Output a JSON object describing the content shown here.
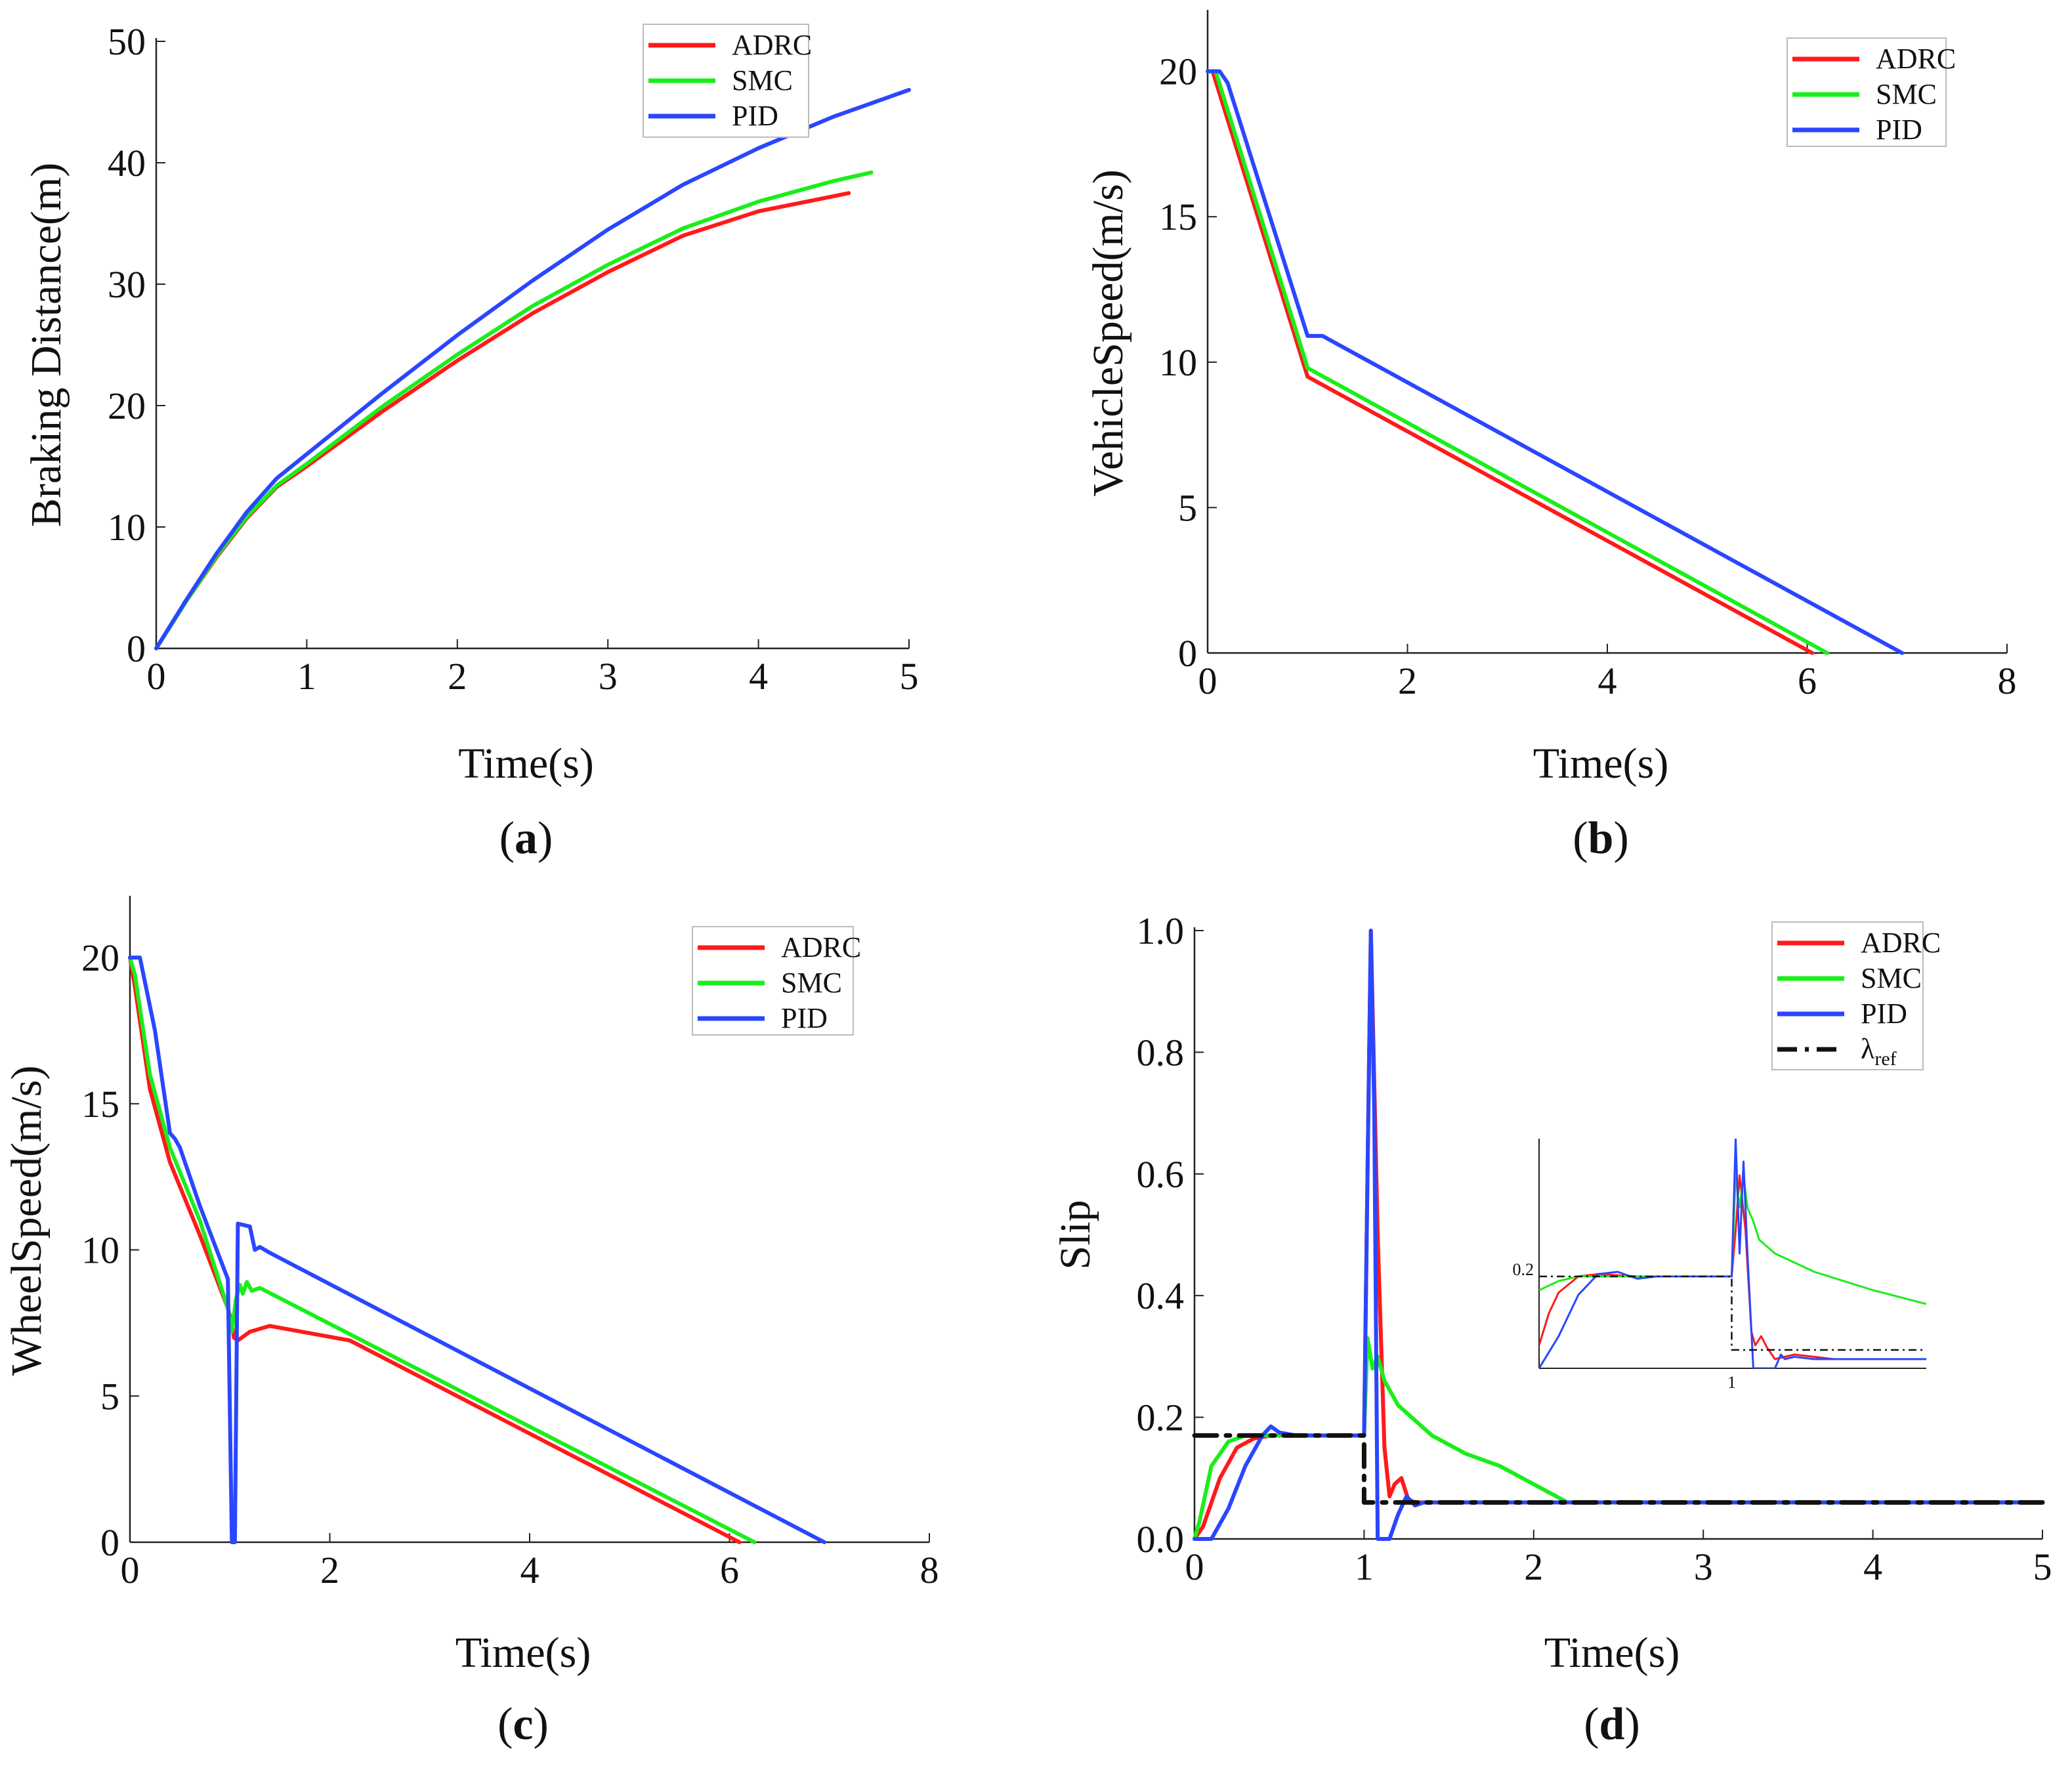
{
  "figure": {
    "labels": [
      "(a)",
      "(b)",
      "(c)",
      "(d)"
    ],
    "colors": {
      "ADRC": "#ff1a1a",
      "SMC": "#1aee1a",
      "PID": "#2a46ff",
      "ref": "#111111"
    }
  },
  "chart_data": [
    {
      "type": "line",
      "panel": "(a)",
      "xlabel": "Time(s)",
      "ylabel": "Braking Distance(m)",
      "xlim": [
        0,
        5
      ],
      "ylim": [
        0,
        50
      ],
      "xticks": [
        0,
        1,
        2,
        3,
        4,
        5
      ],
      "yticks": [
        0,
        10,
        20,
        30,
        40,
        50
      ],
      "legend": [
        "ADRC",
        "SMC",
        "PID"
      ],
      "legend_position": "top-right",
      "series": [
        {
          "name": "ADRC",
          "x": [
            0,
            0.2,
            0.4,
            0.6,
            0.8,
            1.0,
            1.5,
            2.0,
            2.5,
            3.0,
            3.5,
            4.0,
            4.6
          ],
          "y": [
            0,
            3.9,
            7.5,
            10.7,
            13.3,
            15.0,
            19.5,
            23.7,
            27.6,
            31.0,
            34.0,
            36.0,
            37.5
          ]
        },
        {
          "name": "SMC",
          "x": [
            0,
            0.2,
            0.4,
            0.6,
            0.8,
            1.0,
            1.5,
            2.0,
            2.5,
            3.0,
            3.5,
            4.0,
            4.5,
            4.75
          ],
          "y": [
            0,
            3.9,
            7.6,
            10.8,
            13.4,
            15.2,
            19.9,
            24.2,
            28.2,
            31.6,
            34.6,
            36.8,
            38.5,
            39.2
          ]
        },
        {
          "name": "PID",
          "x": [
            0,
            0.2,
            0.4,
            0.6,
            0.8,
            1.0,
            1.5,
            2.0,
            2.5,
            3.0,
            3.5,
            4.0,
            4.5,
            5.0
          ],
          "y": [
            0,
            4.0,
            7.8,
            11.2,
            14.0,
            16.0,
            21.0,
            25.8,
            30.3,
            34.5,
            38.2,
            41.2,
            43.8,
            46.0
          ]
        }
      ]
    },
    {
      "type": "line",
      "panel": "(b)",
      "xlabel": "Time(s)",
      "ylabel": "VehicleSpeed(m/s)",
      "xlim": [
        0,
        8
      ],
      "ylim": [
        0,
        22
      ],
      "xticks": [
        0,
        2,
        4,
        6,
        8
      ],
      "yticks": [
        0,
        5,
        10,
        15,
        20
      ],
      "legend": [
        "ADRC",
        "SMC",
        "PID"
      ],
      "legend_position": "top-right",
      "series": [
        {
          "name": "ADRC",
          "x": [
            0,
            0.05,
            1.0,
            6.05
          ],
          "y": [
            20,
            20,
            9.5,
            0
          ]
        },
        {
          "name": "SMC",
          "x": [
            0,
            0.08,
            1.0,
            6.2
          ],
          "y": [
            20,
            20,
            9.8,
            0
          ]
        },
        {
          "name": "PID",
          "x": [
            0,
            0.12,
            0.2,
            1.0,
            1.15,
            6.95
          ],
          "y": [
            20,
            20,
            19.6,
            10.9,
            10.9,
            0
          ]
        }
      ]
    },
    {
      "type": "line",
      "panel": "(c)",
      "xlabel": "Time(s)",
      "ylabel": "WheelSpeed(m/s)",
      "xlim": [
        0,
        8
      ],
      "ylim": [
        0,
        22
      ],
      "xticks": [
        0,
        2,
        4,
        6,
        8
      ],
      "yticks": [
        0,
        5,
        10,
        15,
        20
      ],
      "legend": [
        "ADRC",
        "SMC",
        "PID"
      ],
      "legend_position": "top-right",
      "series": [
        {
          "name": "ADRC",
          "x": [
            0,
            0.05,
            0.2,
            0.4,
            0.7,
            0.98,
            1.02,
            1.04,
            1.08,
            1.2,
            1.4,
            2.2,
            6.1
          ],
          "y": [
            20,
            19.0,
            15.5,
            13.0,
            10.5,
            8.0,
            7.5,
            7.0,
            6.9,
            7.2,
            7.4,
            6.9,
            0
          ]
        },
        {
          "name": "SMC",
          "x": [
            0,
            0.05,
            0.2,
            0.4,
            0.7,
            0.98,
            1.02,
            1.06,
            1.1,
            1.13,
            1.17,
            1.22,
            1.3,
            6.25
          ],
          "y": [
            20,
            19.4,
            16.0,
            13.5,
            11.0,
            8.0,
            7.2,
            8.3,
            8.8,
            8.5,
            8.9,
            8.6,
            8.7,
            0
          ]
        },
        {
          "name": "PID",
          "x": [
            0,
            0.1,
            0.25,
            0.4,
            0.45,
            0.5,
            0.7,
            0.98,
            1.02,
            1.05,
            1.08,
            1.2,
            1.25,
            1.3,
            1.4,
            6.95
          ],
          "y": [
            20,
            20,
            17.5,
            14.0,
            13.8,
            13.5,
            11.5,
            9.0,
            0,
            0,
            10.9,
            10.8,
            10.0,
            10.1,
            9.9,
            0
          ]
        }
      ]
    },
    {
      "type": "line",
      "panel": "(d)",
      "xlabel": "Time(s)",
      "ylabel": "Slip",
      "xlim": [
        0,
        5
      ],
      "ylim": [
        0,
        1.0
      ],
      "xticks": [
        0,
        1,
        2,
        3,
        4,
        5
      ],
      "yticks": [
        0.0,
        0.2,
        0.4,
        0.6,
        0.8,
        1.0
      ],
      "ytick_labels": [
        "0.0",
        "0.2",
        "0.4",
        "0.6",
        "0.8",
        "1.0"
      ],
      "legend": [
        "ADRC",
        "SMC",
        "PID",
        "λref"
      ],
      "legend_position": "top-right",
      "series": [
        {
          "name": "ADRC",
          "x": [
            0,
            0.05,
            0.15,
            0.25,
            0.35,
            0.45,
            1.0,
            1.02,
            1.04,
            1.08,
            1.12,
            1.15,
            1.18,
            1.22,
            1.26,
            1.3,
            1.4,
            5.0
          ],
          "y": [
            0,
            0.02,
            0.1,
            0.15,
            0.165,
            0.17,
            0.17,
            0.6,
            1.0,
            0.5,
            0.15,
            0.07,
            0.09,
            0.1,
            0.065,
            0.06,
            0.06,
            0.06
          ]
        },
        {
          "name": "SMC",
          "x": [
            0,
            0.03,
            0.1,
            0.2,
            0.3,
            1.0,
            1.02,
            1.05,
            1.08,
            1.12,
            1.2,
            1.4,
            1.6,
            1.8,
            2.0,
            2.2,
            5.0
          ],
          "y": [
            0,
            0.03,
            0.12,
            0.16,
            0.17,
            0.17,
            0.33,
            0.28,
            0.3,
            0.26,
            0.22,
            0.17,
            0.14,
            0.12,
            0.09,
            0.06,
            0.06
          ]
        },
        {
          "name": "PID",
          "x": [
            0,
            0.1,
            0.2,
            0.3,
            0.4,
            0.45,
            0.5,
            0.6,
            0.7,
            1.0,
            1.02,
            1.04,
            1.06,
            1.08,
            1.1,
            1.15,
            1.2,
            1.25,
            1.3,
            1.35,
            5.0
          ],
          "y": [
            0,
            0.0,
            0.05,
            0.12,
            0.17,
            0.185,
            0.175,
            0.17,
            0.17,
            0.17,
            0.6,
            1.0,
            0.7,
            0.0,
            0.0,
            0.0,
            0.04,
            0.07,
            0.055,
            0.06,
            0.06
          ]
        },
        {
          "name": "λref",
          "x": [
            0,
            1.0,
            1.0,
            5.0
          ],
          "y": [
            0.17,
            0.17,
            0.06,
            0.06
          ]
        }
      ],
      "inset": {
        "xtick": "1",
        "ytick": "0.2",
        "series": [
          {
            "name": "ADRC",
            "x": [
              0,
              0.05,
              0.1,
              0.2,
              0.3,
              0.5,
              0.98,
              1.0,
              1.02,
              1.05,
              1.08,
              1.1,
              1.13,
              1.16,
              1.2,
              1.3,
              1.5,
              1.97
            ],
            "y": [
              0.05,
              0.12,
              0.165,
              0.2,
              0.205,
              0.2,
              0.2,
              0.3,
              0.42,
              0.3,
              0.08,
              0.05,
              0.07,
              0.045,
              0.02,
              0.03,
              0.02,
              0.02
            ]
          },
          {
            "name": "SMC",
            "x": [
              0,
              0.1,
              0.2,
              0.3,
              0.5,
              0.98,
              1.0,
              1.02,
              1.04,
              1.06,
              1.09,
              1.12,
              1.2,
              1.4,
              1.7,
              1.97
            ],
            "y": [
              0.17,
              0.19,
              0.2,
              0.2,
              0.2,
              0.2,
              0.42,
              0.35,
              0.42,
              0.35,
              0.32,
              0.28,
              0.25,
              0.21,
              0.17,
              0.14
            ]
          },
          {
            "name": "PID",
            "x": [
              0,
              0.1,
              0.2,
              0.3,
              0.4,
              0.5,
              0.6,
              0.98,
              1.0,
              1.02,
              1.04,
              1.06,
              1.09,
              1.1,
              1.2,
              1.23,
              1.25,
              1.3,
              1.4,
              1.97
            ],
            "y": [
              0.0,
              0.07,
              0.16,
              0.205,
              0.21,
              0.195,
              0.2,
              0.2,
              0.5,
              0.25,
              0.45,
              0.25,
              0.0,
              0.0,
              0.0,
              0.03,
              0.02,
              0.025,
              0.02,
              0.02
            ]
          },
          {
            "name": "λref",
            "x": [
              0,
              0.98,
              0.98,
              1.97
            ],
            "y": [
              0.2,
              0.2,
              0.04,
              0.04
            ]
          }
        ]
      }
    }
  ]
}
